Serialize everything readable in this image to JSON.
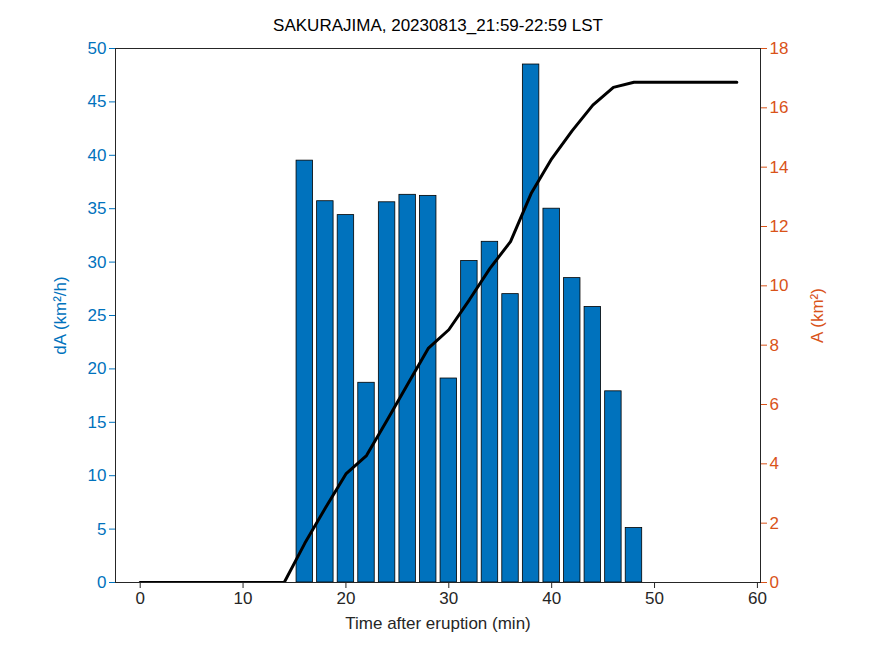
{
  "chart_data": {
    "type": "bar",
    "title": "SAKURAJIMA, 20230813_21:59-22:59 LST",
    "xlabel": "Time after eruption (min)",
    "ylabel": "dA (km²/h)",
    "y2label": "A (km²)",
    "xlim": [
      -2.4,
      60.3
    ],
    "xticks": [
      0,
      10,
      20,
      30,
      40,
      50,
      60
    ],
    "ylim": [
      0,
      50
    ],
    "yticks": [
      0,
      5,
      10,
      15,
      20,
      25,
      30,
      35,
      40,
      45,
      50
    ],
    "y2lim": [
      0,
      18
    ],
    "y2ticks": [
      0,
      2,
      4,
      6,
      8,
      10,
      12,
      14,
      16,
      18
    ],
    "grid": false,
    "series": [
      {
        "type": "bar",
        "color": "#0072BD",
        "x": [
          16,
          18,
          20,
          22,
          24,
          26,
          28,
          30,
          32,
          34,
          36,
          38,
          40,
          42,
          44,
          46,
          48
        ],
        "values": [
          39.5,
          35.7,
          34.4,
          18.7,
          35.6,
          36.3,
          36.2,
          19.1,
          30.1,
          31.9,
          27.0,
          48.5,
          35.0,
          28.5,
          25.8,
          17.9,
          5.1
        ]
      },
      {
        "type": "line",
        "axis": "y2",
        "color": "#000000",
        "x": [
          0,
          2,
          4,
          6,
          8,
          10,
          12,
          14,
          16,
          18,
          20,
          22,
          24,
          26,
          28,
          30,
          32,
          34,
          36,
          38,
          40,
          42,
          44,
          46,
          48,
          50,
          52,
          54,
          56,
          58
        ],
        "values": [
          0,
          0,
          0,
          0,
          0,
          0,
          0,
          0,
          1.32,
          2.51,
          3.66,
          4.28,
          5.47,
          6.68,
          7.89,
          8.52,
          9.53,
          10.59,
          11.49,
          13.11,
          14.28,
          15.23,
          16.09,
          16.69,
          16.86,
          16.86,
          16.86,
          16.86,
          16.86,
          16.86
        ]
      }
    ]
  }
}
